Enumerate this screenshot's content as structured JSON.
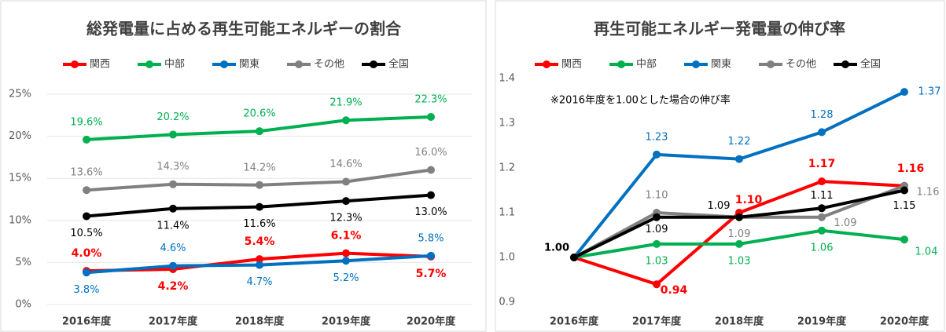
{
  "chart_data": [
    {
      "type": "line",
      "title": "総発電量に占める再生可能エネルギーの割合",
      "categories": [
        "2016年度",
        "2017年度",
        "2018年度",
        "2019年度",
        "2020年度"
      ],
      "ylim": [
        0,
        25
      ],
      "yticks": [
        {
          "value": 0,
          "label": "0%"
        },
        {
          "value": 5,
          "label": "5%"
        },
        {
          "value": 10,
          "label": "10%"
        },
        {
          "value": 15,
          "label": "15%"
        },
        {
          "value": 20,
          "label": "20%"
        },
        {
          "value": 25,
          "label": "25%"
        }
      ],
      "grid": true,
      "series": [
        {
          "name": "関西",
          "color": "#ff0000",
          "values": [
            4.0,
            4.2,
            5.4,
            6.1,
            5.7
          ],
          "value_labels": [
            "4.0%",
            "4.2%",
            "5.4%",
            "6.1%",
            "5.7%"
          ]
        },
        {
          "name": "中部",
          "color": "#00b050",
          "values": [
            19.6,
            20.2,
            20.6,
            21.9,
            22.3
          ],
          "value_labels": [
            "19.6%",
            "20.2%",
            "20.6%",
            "21.9%",
            "22.3%"
          ]
        },
        {
          "name": "関東",
          "color": "#0070c0",
          "values": [
            3.8,
            4.6,
            4.7,
            5.2,
            5.8
          ],
          "value_labels": [
            "3.8%",
            "4.6%",
            "4.7%",
            "5.2%",
            "5.8%"
          ]
        },
        {
          "name": "その他",
          "color": "#808080",
          "values": [
            13.6,
            14.3,
            14.2,
            14.6,
            16.0
          ],
          "value_labels": [
            "13.6%",
            "14.3%",
            "14.2%",
            "14.6%",
            "16.0%"
          ]
        },
        {
          "name": "全国",
          "color": "#000000",
          "values": [
            10.5,
            11.4,
            11.6,
            12.3,
            13.0
          ],
          "value_labels": [
            "10.5%",
            "11.4%",
            "11.6%",
            "12.3%",
            "13.0%"
          ]
        }
      ]
    },
    {
      "type": "line",
      "title": "再生可能エネルギー発電量の伸び率",
      "annotation": "※2016年度を1.00とした場合の伸び率",
      "categories": [
        "2016年度",
        "2017年度",
        "2018年度",
        "2019年度",
        "2020年度"
      ],
      "ylim": [
        0.9,
        1.4
      ],
      "yticks": [
        0.9,
        {
          "value": 1,
          "label": "1.0"
        },
        1.1,
        1.2,
        1.3,
        1.4
      ],
      "grid": false,
      "series": [
        {
          "name": "関西",
          "color": "#ff0000",
          "values": [
            1.0,
            0.94,
            1.1,
            1.17,
            1.16
          ],
          "value_labels": [
            null,
            "0.94",
            "1.10",
            "1.17",
            "1.16"
          ]
        },
        {
          "name": "中部",
          "color": "#00b050",
          "values": [
            1.0,
            1.03,
            1.03,
            1.06,
            1.04
          ],
          "value_labels": [
            null,
            "1.03",
            "1.03",
            "1.06",
            "1.04"
          ]
        },
        {
          "name": "関東",
          "color": "#0070c0",
          "values": [
            1.0,
            1.23,
            1.22,
            1.28,
            1.37
          ],
          "value_labels": [
            null,
            "1.23",
            "1.22",
            "1.28",
            "1.37"
          ]
        },
        {
          "name": "その他",
          "color": "#808080",
          "values": [
            1.0,
            1.1,
            1.09,
            1.09,
            1.16
          ],
          "value_labels": [
            null,
            "1.10",
            "1.09",
            "1.09",
            "1.16"
          ]
        },
        {
          "name": "全国",
          "color": "#000000",
          "values": [
            1.0,
            1.09,
            1.09,
            1.11,
            1.15
          ],
          "value_labels": [
            "1.00",
            "1.09",
            "1.09",
            "1.11",
            "1.15"
          ]
        }
      ]
    }
  ]
}
